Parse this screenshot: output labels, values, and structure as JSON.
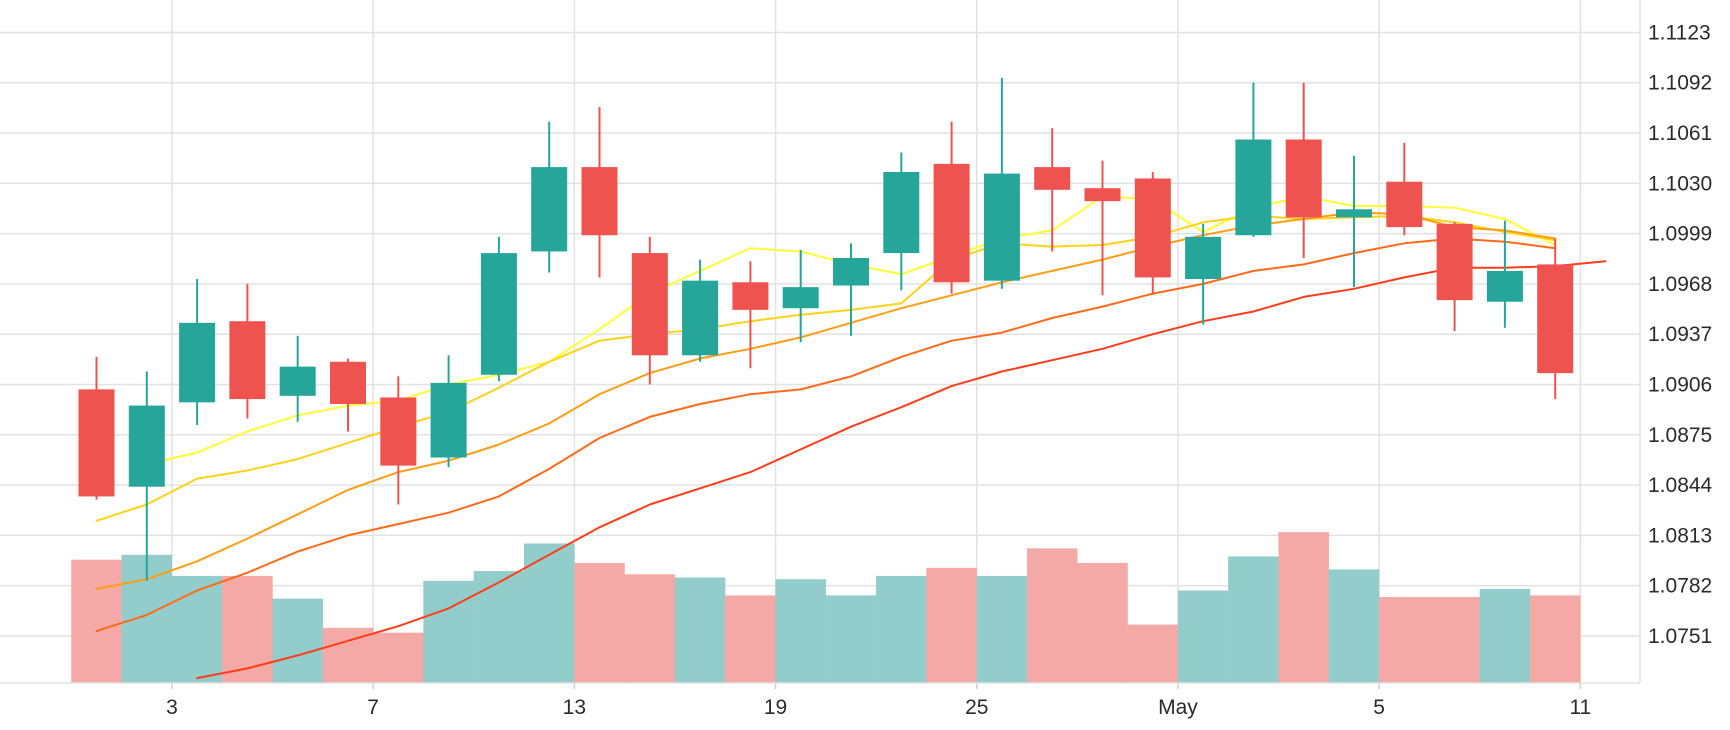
{
  "chart_data": {
    "type": "candlestick",
    "colors": {
      "up": "#26a69a",
      "down": "#ef5350",
      "up_volume": "#92cccb",
      "down_volume": "#f5a9a6",
      "grid": "#e2e2e2",
      "ma_lines": [
        "#ffff33",
        "#ffd21a",
        "#ff9e14",
        "#ff6b1a",
        "#ff3d1a"
      ]
    },
    "y_ticks": [
      "1.1123",
      "1.1092",
      "1.1061",
      "1.1030",
      "1.0999",
      "1.0968",
      "1.0937",
      "1.0906",
      "1.0875",
      "1.0844",
      "1.0813",
      "1.0782",
      "1.0751"
    ],
    "ylim": [
      1.0722,
      1.1143
    ],
    "x_ticks": [
      {
        "label": "3",
        "index": 1.5
      },
      {
        "label": "7",
        "index": 5.5
      },
      {
        "label": "13",
        "index": 9.5
      },
      {
        "label": "19",
        "index": 13.5
      },
      {
        "label": "25",
        "index": 17.5
      },
      {
        "label": "May",
        "index": 21.5
      },
      {
        "label": "5",
        "index": 25.5
      },
      {
        "label": "11",
        "index": 29.5
      }
    ],
    "candles": [
      {
        "open": 1.0903,
        "high": 1.0923,
        "low": 1.0835,
        "close": 1.0837
      },
      {
        "open": 1.0843,
        "high": 1.0914,
        "low": 1.0785,
        "close": 1.0893
      },
      {
        "open": 1.0895,
        "high": 1.0971,
        "low": 1.0881,
        "close": 1.0944
      },
      {
        "open": 1.0945,
        "high": 1.0968,
        "low": 1.0885,
        "close": 1.0897
      },
      {
        "open": 1.0899,
        "high": 1.0936,
        "low": 1.0883,
        "close": 1.0917
      },
      {
        "open": 1.092,
        "high": 1.0922,
        "low": 1.0877,
        "close": 1.0894
      },
      {
        "open": 1.0898,
        "high": 1.0911,
        "low": 1.0832,
        "close": 1.0856
      },
      {
        "open": 1.0861,
        "high": 1.0924,
        "low": 1.0855,
        "close": 1.0907
      },
      {
        "open": 1.0912,
        "high": 1.0997,
        "low": 1.0908,
        "close": 1.0987
      },
      {
        "open": 1.0988,
        "high": 1.1068,
        "low": 1.0975,
        "close": 1.104
      },
      {
        "open": 1.104,
        "high": 1.1077,
        "low": 1.0972,
        "close": 1.0998
      },
      {
        "open": 1.0987,
        "high": 1.0997,
        "low": 1.0906,
        "close": 1.0924
      },
      {
        "open": 1.0924,
        "high": 1.0983,
        "low": 1.092,
        "close": 1.097
      },
      {
        "open": 1.0969,
        "high": 1.0982,
        "low": 1.0916,
        "close": 1.0952
      },
      {
        "open": 1.0953,
        "high": 1.0989,
        "low": 1.0932,
        "close": 1.0966
      },
      {
        "open": 1.0967,
        "high": 1.0993,
        "low": 1.0936,
        "close": 1.0984
      },
      {
        "open": 1.0987,
        "high": 1.1049,
        "low": 1.0964,
        "close": 1.1037
      },
      {
        "open": 1.1042,
        "high": 1.1068,
        "low": 1.0962,
        "close": 1.0969
      },
      {
        "open": 1.097,
        "high": 1.1095,
        "low": 1.0965,
        "close": 1.1036
      },
      {
        "open": 1.104,
        "high": 1.1064,
        "low": 1.0988,
        "close": 1.1026
      },
      {
        "open": 1.1027,
        "high": 1.1044,
        "low": 1.0961,
        "close": 1.1019
      },
      {
        "open": 1.1033,
        "high": 1.1037,
        "low": 1.0962,
        "close": 1.0972
      },
      {
        "open": 1.0971,
        "high": 1.1005,
        "low": 1.0943,
        "close": 1.0997
      },
      {
        "open": 1.0998,
        "high": 1.1092,
        "low": 1.0997,
        "close": 1.1057
      },
      {
        "open": 1.1057,
        "high": 1.1092,
        "low": 1.0984,
        "close": 1.1009
      },
      {
        "open": 1.1009,
        "high": 1.1047,
        "low": 1.0966,
        "close": 1.1014
      },
      {
        "open": 1.1031,
        "high": 1.1055,
        "low": 1.0998,
        "close": 1.1003
      },
      {
        "open": 1.1005,
        "high": 1.1006,
        "low": 1.0939,
        "close": 1.0958
      },
      {
        "open": 1.0957,
        "high": 1.1007,
        "low": 1.0941,
        "close": 1.0976
      },
      {
        "open": 1.098,
        "high": 1.0996,
        "low": 1.0897,
        "close": 1.0913
      }
    ],
    "volumes": [
      1.0798,
      1.0801,
      1.0788,
      1.0788,
      1.0774,
      1.0756,
      1.0753,
      1.0785,
      1.0791,
      1.0808,
      1.0796,
      1.0789,
      1.0787,
      1.0776,
      1.0786,
      1.0776,
      1.0788,
      1.0793,
      1.0788,
      1.0805,
      1.0796,
      1.0758,
      1.0779,
      1.08,
      1.0815,
      1.0792,
      1.0775,
      1.0775,
      1.078,
      1.0776
    ],
    "moving_averages": [
      {
        "start": 1,
        "values": [
          1.0857,
          1.0864,
          1.0877,
          1.0887,
          1.0893,
          1.0896,
          1.0906,
          1.0912,
          1.092,
          1.094,
          1.0962,
          1.0976,
          1.099,
          1.0988,
          1.098,
          1.0974,
          1.0985,
          1.0996,
          1.1001,
          1.1022,
          1.102,
          1.1,
          1.1015,
          1.1022,
          1.1016,
          1.1016,
          1.1015,
          1.1008,
          1.0992
        ]
      },
      {
        "start": 0,
        "values": [
          1.0822,
          1.0832,
          1.0848,
          1.0853,
          1.086,
          1.087,
          1.088,
          1.0889,
          1.0904,
          1.092,
          1.0933,
          1.0937,
          1.094,
          1.0945,
          1.0949,
          1.0952,
          1.0956,
          1.0983,
          1.0993,
          1.0991,
          1.0992,
          1.0997,
          1.1006,
          1.101,
          1.1008,
          1.1009,
          1.101,
          1.1006,
          1.1,
          1.0995
        ]
      },
      {
        "start": 0,
        "values": [
          1.078,
          1.0786,
          1.0797,
          1.0811,
          1.0826,
          1.0841,
          1.0852,
          1.0859,
          1.0869,
          1.0882,
          1.09,
          1.0913,
          1.0922,
          1.0928,
          1.0935,
          1.0944,
          1.0953,
          1.0961,
          1.0969,
          1.0976,
          1.0983,
          1.0991,
          1.0998,
          1.1004,
          1.1008,
          1.1012,
          1.1011,
          1.1003,
          1.1001,
          1.0996
        ]
      },
      {
        "start": 0,
        "values": [
          1.0754,
          1.0764,
          1.0779,
          1.079,
          1.0803,
          1.0813,
          1.082,
          1.0827,
          1.0837,
          1.0854,
          1.0873,
          1.0886,
          1.0894,
          1.09,
          1.0903,
          1.0911,
          1.0923,
          1.0933,
          1.0938,
          1.0947,
          1.0954,
          1.0962,
          1.0968,
          1.0976,
          1.098,
          1.0987,
          1.0993,
          1.0996,
          1.0994,
          1.099
        ]
      },
      {
        "start": 2,
        "values": [
          1.0725,
          1.0731,
          1.0739,
          1.0748,
          1.0757,
          1.0768,
          1.0784,
          1.0801,
          1.0818,
          1.0832,
          1.0842,
          1.0852,
          1.0866,
          1.088,
          1.0892,
          1.0905,
          1.0914,
          1.0921,
          1.0928,
          1.0937,
          1.0945,
          1.0951,
          1.096,
          1.0965,
          1.0972,
          1.0978,
          1.0978,
          1.0979,
          1.0982
        ]
      }
    ]
  }
}
